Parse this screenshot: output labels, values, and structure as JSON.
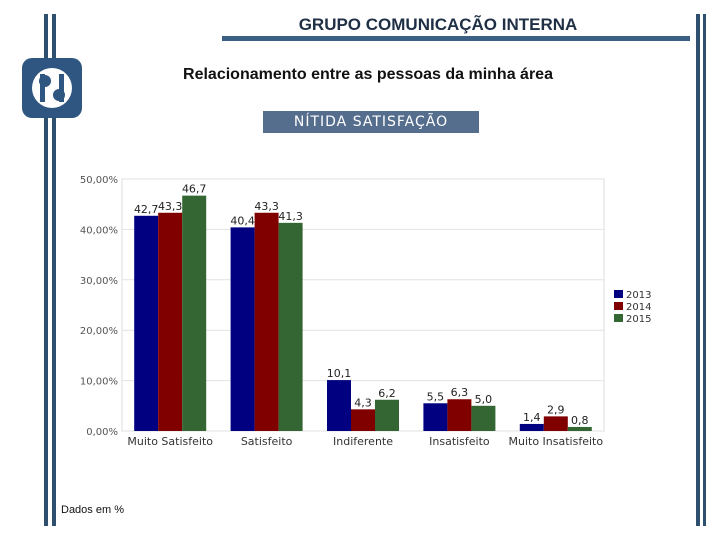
{
  "header": {
    "title": "GRUPO COMUNICAÇÃO INTERNA"
  },
  "subtitle": "Relacionamento entre as pessoas da minha área",
  "banner": "NÍTIDA SATISFAÇÃO",
  "footnote": "Dados em %",
  "colors": {
    "s2013": "#000080",
    "s2014": "#800000",
    "s2015": "#336633",
    "frame": "#2f4f6f",
    "banner": "#566e8e"
  },
  "chart_data": {
    "type": "bar",
    "categories": [
      "Muito Satisfeito",
      "Satisfeito",
      "Indiferente",
      "Insatisfeito",
      "Muito Insatisfeito"
    ],
    "series": [
      {
        "name": "2013",
        "values": [
          42.7,
          40.4,
          10.1,
          5.5,
          1.4
        ],
        "labels": [
          "42,7",
          "40,4",
          "10,1",
          "5,5",
          "1,4"
        ]
      },
      {
        "name": "2014",
        "values": [
          43.3,
          43.3,
          4.3,
          6.3,
          2.9
        ],
        "labels": [
          "43,3",
          "43,3",
          "4,3",
          "6,3",
          "2,9"
        ]
      },
      {
        "name": "2015",
        "values": [
          46.7,
          41.3,
          6.2,
          5.0,
          0.8
        ],
        "labels": [
          "46,7",
          "41,3",
          "6,2",
          "5,0",
          "0,8"
        ]
      }
    ],
    "yticks": [
      "0,00%",
      "10,00%",
      "20,00%",
      "30,00%",
      "40,00%",
      "50,00%"
    ],
    "ylim": [
      0,
      50
    ],
    "legend_position": "right",
    "grid": true
  }
}
